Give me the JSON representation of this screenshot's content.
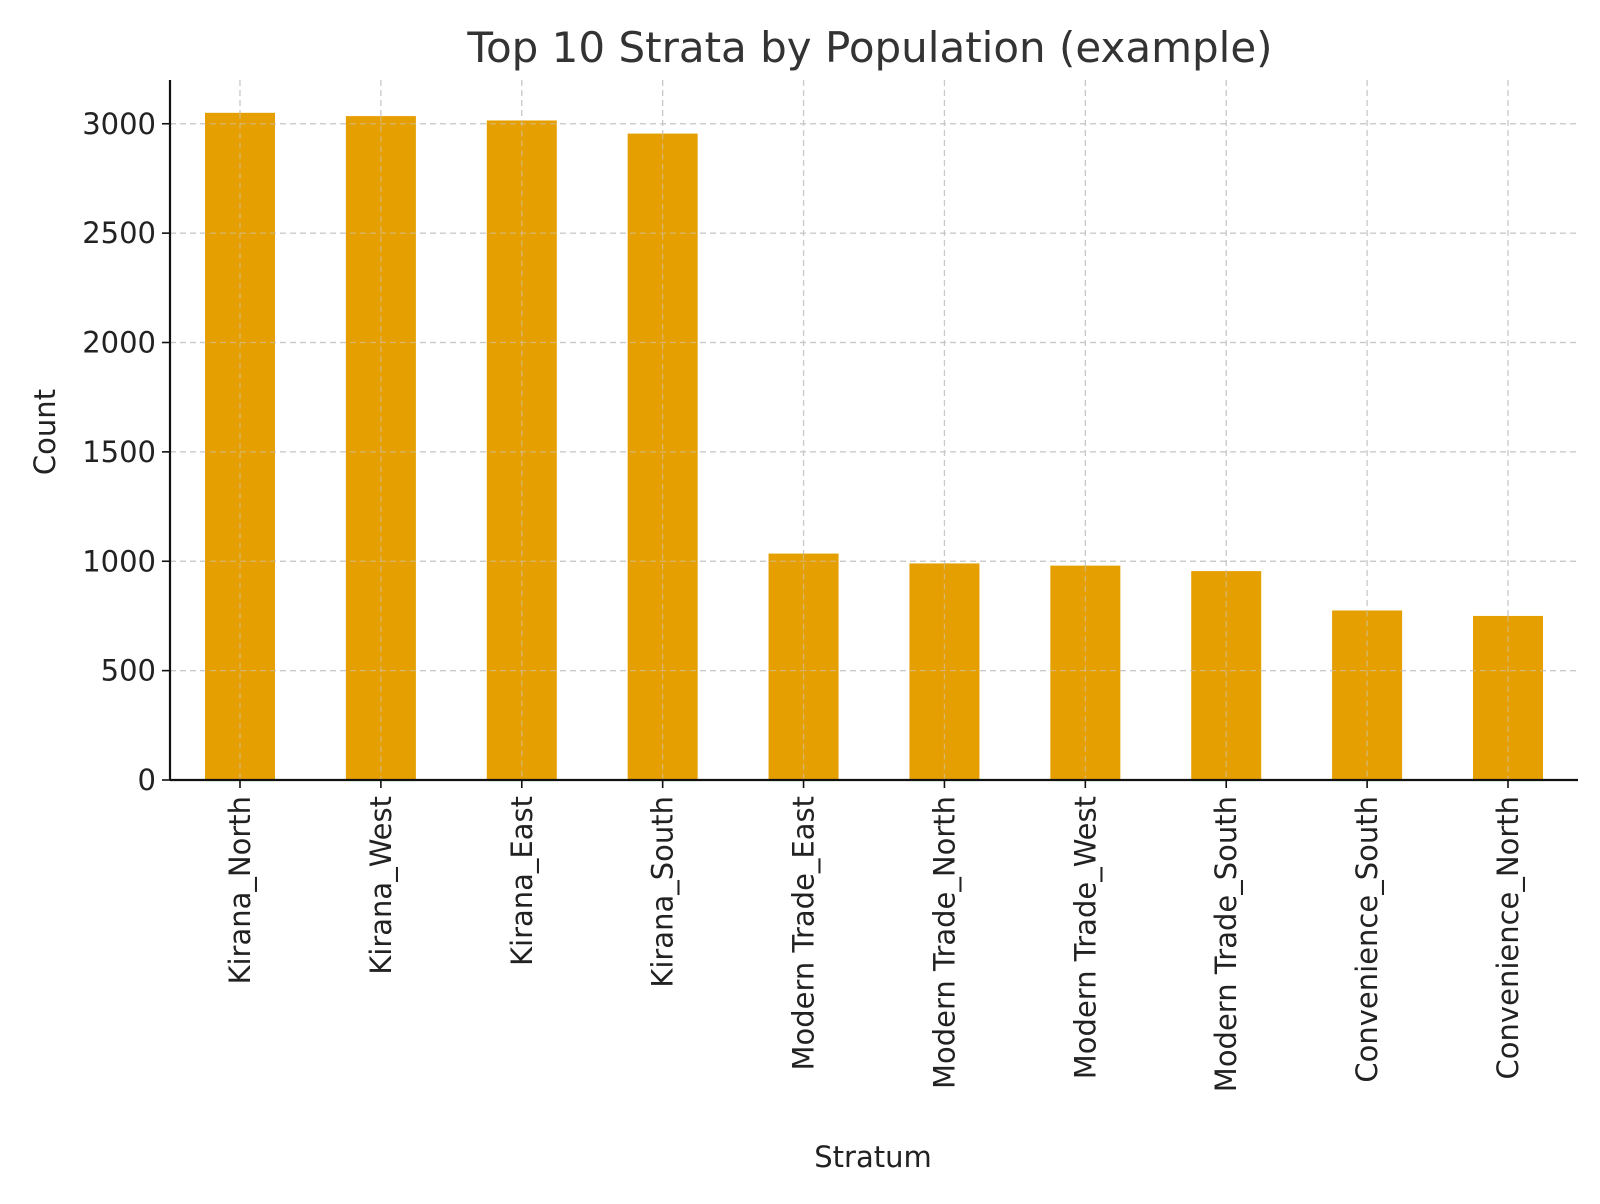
{
  "chart_data": {
    "type": "bar",
    "title": "Top 10 Strata by Population (example)",
    "xlabel": "Stratum",
    "ylabel": "Count",
    "categories": [
      "Kirana_North",
      "Kirana_West",
      "Kirana_East",
      "Kirana_South",
      "Modern Trade_East",
      "Modern Trade_North",
      "Modern Trade_West",
      "Modern Trade_South",
      "Convenience_South",
      "Convenience_North"
    ],
    "values": [
      3050,
      3035,
      3015,
      2955,
      1035,
      990,
      980,
      955,
      775,
      750
    ],
    "ylim": [
      0,
      3200
    ],
    "yticks": [
      0,
      500,
      1000,
      1500,
      2000,
      2500,
      3000
    ],
    "grid": true,
    "bar_color": "#E69F00"
  }
}
